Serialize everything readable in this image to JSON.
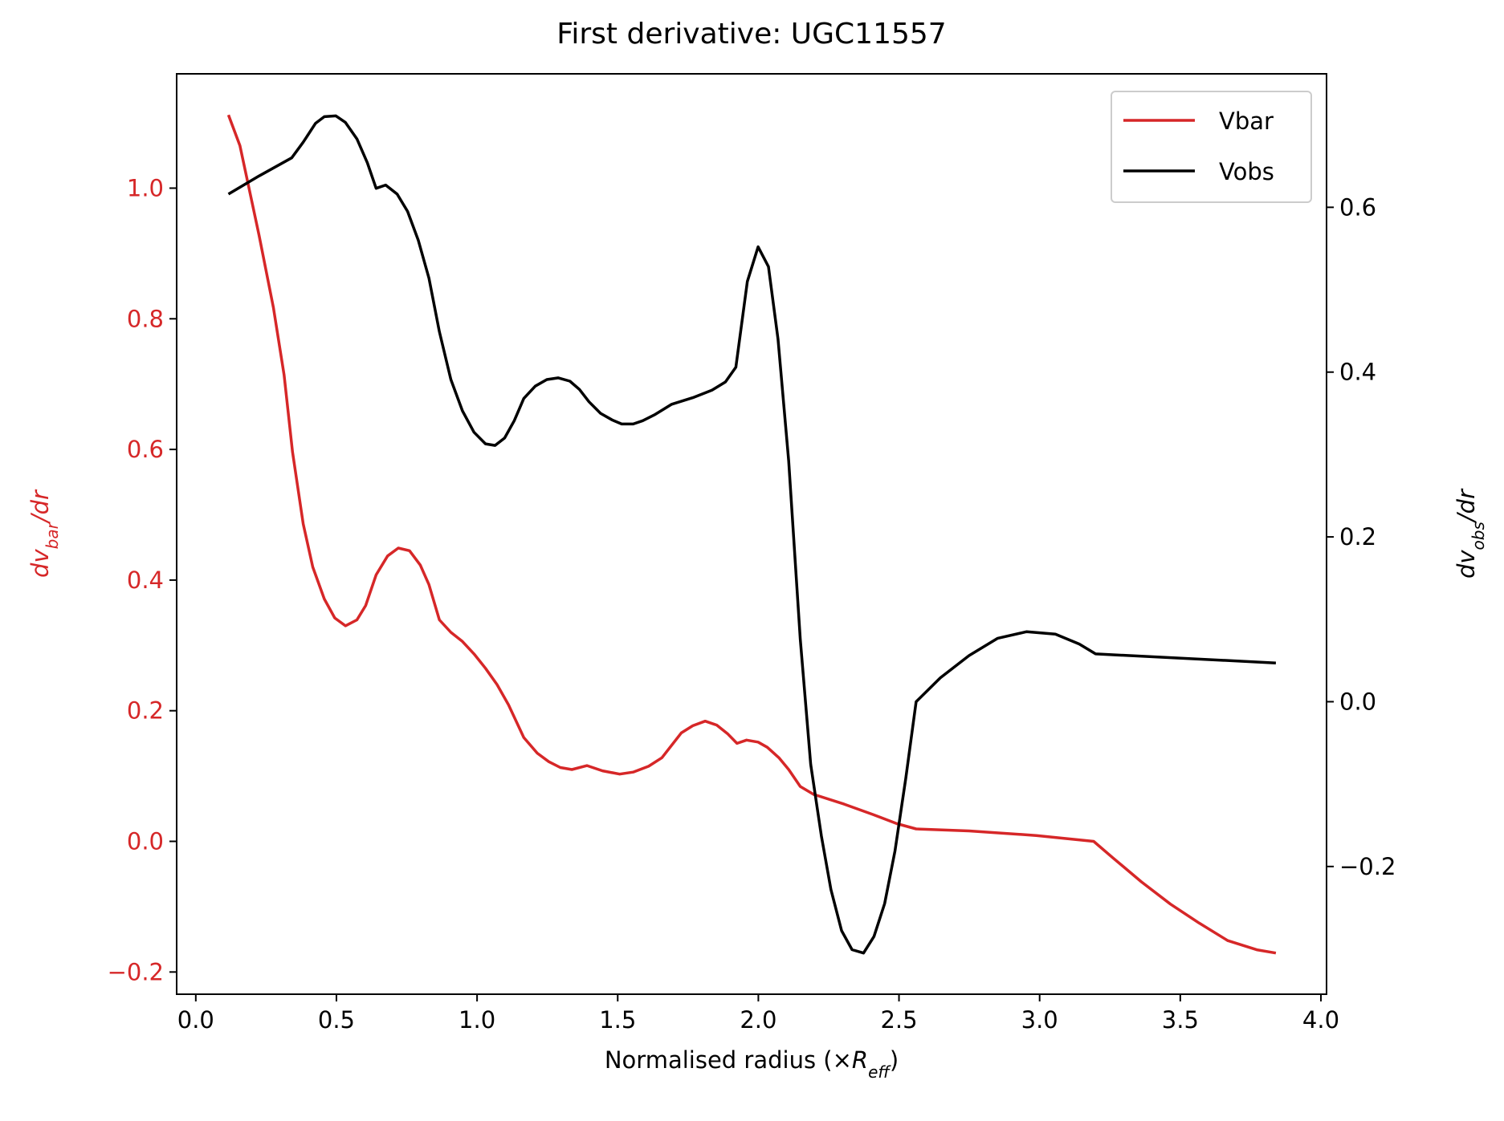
{
  "chart_data": {
    "type": "line",
    "title": "First derivative: UGC11557",
    "x_label": [
      "Normalised radius (×",
      "R",
      "eff",
      ")"
    ],
    "y_label": [
      "dv",
      "bar",
      "/dr"
    ],
    "y2_label": [
      "dv",
      "obs",
      "/dr"
    ],
    "xlim": [
      -0.068,
      4.02
    ],
    "ylim": [
      -0.234,
      1.175
    ],
    "y2lim": [
      -0.355,
      0.762
    ],
    "xticks": [
      {
        "value": 0,
        "label": "0.0"
      },
      {
        "value": 0.5,
        "label": "0.5"
      },
      {
        "value": 1,
        "label": "1.0"
      },
      {
        "value": 1.5,
        "label": "1.5"
      },
      {
        "value": 2,
        "label": "2.0"
      },
      {
        "value": 2.5,
        "label": "2.5"
      },
      {
        "value": 3,
        "label": "3.0"
      },
      {
        "value": 3.5,
        "label": "3.5"
      },
      {
        "value": 4,
        "label": "4.0"
      }
    ],
    "yticks": [
      {
        "value": -0.2,
        "label": "−0.2"
      },
      {
        "value": 0,
        "label": "0.0"
      },
      {
        "value": 0.2,
        "label": "0.2"
      },
      {
        "value": 0.4,
        "label": "0.4"
      },
      {
        "value": 0.6,
        "label": "0.6"
      },
      {
        "value": 0.8,
        "label": "0.8"
      },
      {
        "value": 1,
        "label": "1.0"
      }
    ],
    "y2ticks": [
      {
        "value": -0.2,
        "label": "−0.2"
      },
      {
        "value": 0,
        "label": "0.0"
      },
      {
        "value": 0.2,
        "label": "0.2"
      },
      {
        "value": 0.4,
        "label": "0.4"
      },
      {
        "value": 0.6,
        "label": "0.6"
      }
    ],
    "legend": "upper right",
    "series": [
      {
        "name": "Vbar",
        "color": "#d62728",
        "axis": "y",
        "x": [
          0.116,
          0.157,
          0.225,
          0.276,
          0.314,
          0.344,
          0.382,
          0.416,
          0.457,
          0.494,
          0.532,
          0.573,
          0.604,
          0.641,
          0.682,
          0.72,
          0.76,
          0.798,
          0.829,
          0.866,
          0.907,
          0.948,
          0.989,
          1.03,
          1.071,
          1.112,
          1.166,
          1.214,
          1.255,
          1.296,
          1.337,
          1.391,
          1.446,
          1.507,
          1.555,
          1.61,
          1.657,
          1.726,
          1.767,
          1.811,
          1.852,
          1.89,
          1.924,
          1.958,
          1.999,
          2.032,
          2.073,
          2.108,
          2.149,
          2.196,
          2.305,
          2.408,
          2.493,
          2.561,
          2.749,
          2.988,
          3.192,
          3.26,
          3.362,
          3.465,
          3.567,
          3.669,
          3.772,
          3.84
        ],
        "values": [
          1.112,
          1.065,
          0.928,
          0.817,
          0.714,
          0.596,
          0.486,
          0.42,
          0.371,
          0.342,
          0.33,
          0.339,
          0.361,
          0.408,
          0.437,
          0.449,
          0.445,
          0.423,
          0.393,
          0.339,
          0.32,
          0.306,
          0.287,
          0.265,
          0.24,
          0.209,
          0.159,
          0.135,
          0.122,
          0.113,
          0.11,
          0.116,
          0.108,
          0.103,
          0.106,
          0.115,
          0.128,
          0.166,
          0.177,
          0.184,
          0.178,
          0.165,
          0.15,
          0.155,
          0.152,
          0.144,
          0.128,
          0.11,
          0.084,
          0.072,
          0.057,
          0.041,
          0.027,
          0.019,
          0.016,
          0.009,
          0.0,
          -0.025,
          -0.062,
          -0.096,
          -0.125,
          -0.152,
          -0.166,
          -0.171
        ]
      },
      {
        "name": "Vobs",
        "color": "#000000",
        "axis": "y2",
        "x": [
          0.116,
          0.225,
          0.341,
          0.382,
          0.426,
          0.457,
          0.498,
          0.532,
          0.573,
          0.61,
          0.641,
          0.675,
          0.716,
          0.753,
          0.791,
          0.829,
          0.866,
          0.907,
          0.948,
          0.989,
          1.03,
          1.064,
          1.098,
          1.132,
          1.166,
          1.207,
          1.248,
          1.289,
          1.33,
          1.364,
          1.398,
          1.439,
          1.48,
          1.514,
          1.555,
          1.589,
          1.63,
          1.692,
          1.767,
          1.835,
          1.883,
          1.92,
          1.961,
          1.999,
          2.036,
          2.07,
          2.108,
          2.149,
          2.186,
          2.224,
          2.258,
          2.296,
          2.333,
          2.374,
          2.411,
          2.449,
          2.486,
          2.524,
          2.561,
          2.647,
          2.749,
          2.851,
          2.954,
          3.056,
          3.141,
          3.199,
          3.84
        ],
        "values": [
          0.616,
          0.638,
          0.66,
          0.679,
          0.702,
          0.71,
          0.711,
          0.703,
          0.683,
          0.654,
          0.623,
          0.627,
          0.616,
          0.595,
          0.56,
          0.514,
          0.449,
          0.391,
          0.353,
          0.327,
          0.313,
          0.311,
          0.32,
          0.341,
          0.368,
          0.383,
          0.391,
          0.393,
          0.389,
          0.379,
          0.364,
          0.35,
          0.342,
          0.337,
          0.337,
          0.341,
          0.348,
          0.361,
          0.369,
          0.378,
          0.388,
          0.406,
          0.51,
          0.552,
          0.528,
          0.44,
          0.292,
          0.076,
          -0.076,
          -0.163,
          -0.228,
          -0.278,
          -0.301,
          -0.305,
          -0.285,
          -0.245,
          -0.181,
          -0.093,
          0.0,
          0.029,
          0.056,
          0.077,
          0.085,
          0.082,
          0.07,
          0.058,
          0.047
        ]
      }
    ]
  }
}
